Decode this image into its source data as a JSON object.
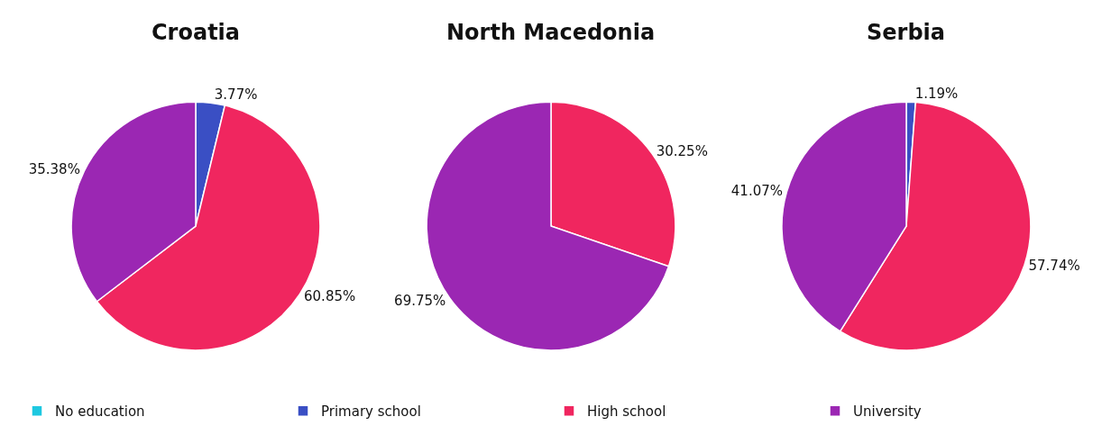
{
  "chart_data": [
    {
      "type": "pie",
      "title": "Croatia",
      "categories": [
        "No education",
        "Primary school",
        "High school",
        "University"
      ],
      "values": [
        0,
        3.77,
        60.85,
        35.38
      ],
      "value_labels": [
        null,
        "3.77%",
        "60.85%",
        "35.38%"
      ],
      "colors": [
        "#1ec8e0",
        "#3a4fc4",
        "#f0265f",
        "#9b27b3"
      ],
      "legend": "bottom"
    },
    {
      "type": "pie",
      "title": "North Macedonia",
      "categories": [
        null,
        null,
        null,
        null
      ],
      "values": [
        0,
        0,
        30.25,
        69.75
      ],
      "value_labels": [
        null,
        null,
        "30.25%",
        "69.75%"
      ],
      "colors": [
        "#1ec8e0",
        "#3a4fc4",
        "#f0265f",
        "#9b27b3"
      ]
    },
    {
      "type": "pie",
      "title": "Serbia",
      "categories": [
        null,
        null,
        null,
        null
      ],
      "values": [
        0,
        1.19,
        57.74,
        41.07
      ],
      "value_labels": [
        null,
        "1.19%",
        "57.74%",
        "41.07%"
      ],
      "colors": [
        "#1ec8e0",
        "#3a4fc4",
        "#f0265f",
        "#9b27b3"
      ]
    }
  ]
}
